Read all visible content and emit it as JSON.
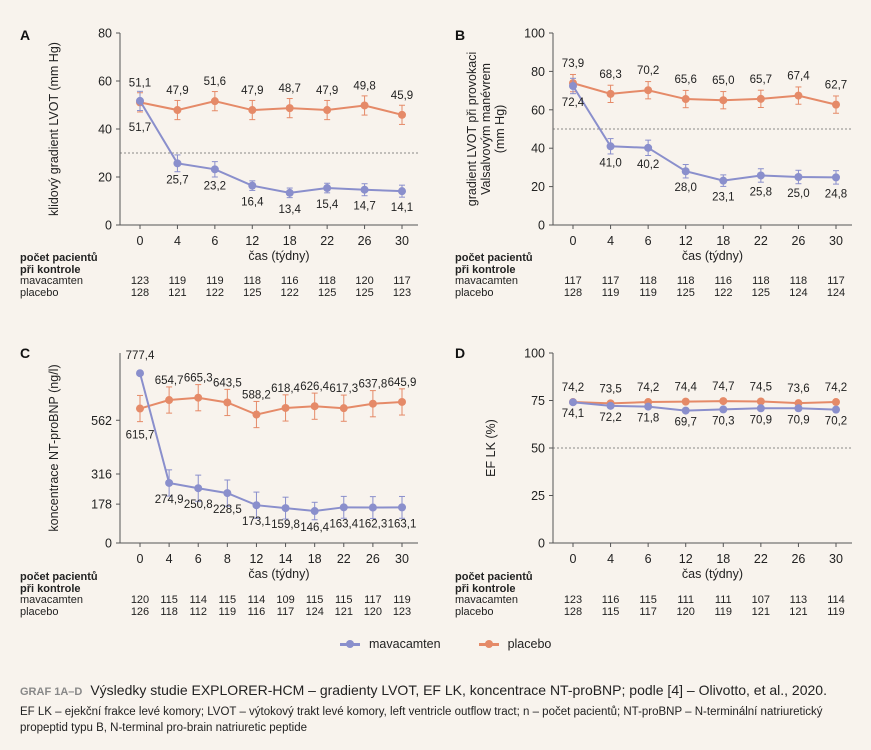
{
  "chart_data": [
    {
      "type": "line",
      "panel_label": "A",
      "ylabel": "klidový gradient LVOT (mm Hg)",
      "xlabel": "čas (týdny)",
      "categories": [
        "0",
        "4",
        "6",
        "12",
        "18",
        "22",
        "26",
        "30"
      ],
      "yticks": [
        "0",
        "20",
        "40",
        "60",
        "80"
      ],
      "ytick_values": [
        0,
        20,
        40,
        60,
        80
      ],
      "ylim": [
        0,
        80
      ],
      "threshold": 30,
      "series": [
        {
          "name": "mavacamten",
          "values": [
            51.7,
            25.7,
            23.2,
            16.4,
            13.4,
            15.4,
            14.7,
            14.1
          ],
          "labels": [
            "51,7",
            "25,7",
            "23,2",
            "16,4",
            "13,4",
            "15,4",
            "14,7",
            "14,1"
          ],
          "errors": [
            4,
            3.5,
            3.2,
            2,
            2,
            2,
            2.5,
            2.5
          ]
        },
        {
          "name": "placebo",
          "values": [
            51.1,
            47.9,
            51.6,
            47.9,
            48.7,
            47.9,
            49.8,
            45.9
          ],
          "labels": [
            "51,1",
            "47,9",
            "51,6",
            "47,9",
            "48,7",
            "47,9",
            "49,8",
            "45,9"
          ],
          "errors": [
            4,
            4,
            4,
            4,
            4,
            4,
            4,
            4
          ]
        }
      ],
      "patients": {
        "mavacamten": [
          "123",
          "119",
          "119",
          "118",
          "116",
          "118",
          "120",
          "117"
        ],
        "placebo": [
          "128",
          "121",
          "122",
          "125",
          "122",
          "125",
          "125",
          "123"
        ]
      }
    },
    {
      "type": "line",
      "panel_label": "B",
      "ylabel": "gradient LVOT při provokaci Valsalvovým manévrem (mm Hg)",
      "xlabel": "čas (týdny)",
      "categories": [
        "0",
        "4",
        "6",
        "12",
        "18",
        "22",
        "26",
        "30"
      ],
      "yticks": [
        "0",
        "20",
        "40",
        "60",
        "80",
        "100"
      ],
      "ytick_values": [
        0,
        20,
        40,
        60,
        80,
        100
      ],
      "ylim": [
        0,
        100
      ],
      "threshold": 50,
      "series": [
        {
          "name": "mavacamten",
          "values": [
            72.4,
            41.0,
            40.2,
            28.0,
            23.1,
            25.8,
            25.0,
            24.8
          ],
          "labels": [
            "72,4",
            "41,0",
            "40,2",
            "28,0",
            "23,1",
            "25,8",
            "25,0",
            "24,8"
          ],
          "errors": [
            4,
            4,
            4,
            3.5,
            3,
            3.5,
            3.5,
            3.5
          ]
        },
        {
          "name": "placebo",
          "values": [
            73.9,
            68.3,
            70.2,
            65.6,
            65.0,
            65.7,
            67.4,
            62.7
          ],
          "labels": [
            "73,9",
            "68,3",
            "70,2",
            "65,6",
            "65,0",
            "65,7",
            "67,4",
            "62,7"
          ],
          "errors": [
            4.5,
            4.5,
            4.5,
            4.5,
            4.5,
            4.5,
            4.5,
            4.5
          ]
        }
      ],
      "patients": {
        "mavacamten": [
          "117",
          "117",
          "118",
          "118",
          "116",
          "118",
          "118",
          "117"
        ],
        "placebo": [
          "128",
          "119",
          "119",
          "125",
          "122",
          "125",
          "124",
          "124"
        ]
      }
    },
    {
      "type": "line",
      "panel_label": "C",
      "ylabel": "koncentrace NT-proBNP (ng/l)",
      "xlabel": "čas (týdny)",
      "categories": [
        "0",
        "4",
        "6",
        "8",
        "12",
        "14",
        "18",
        "22",
        "26",
        "30"
      ],
      "yticks": [
        "0",
        "178",
        "316",
        "562"
      ],
      "ytick_values": [
        0,
        178,
        316,
        562
      ],
      "ylim": [
        0,
        870
      ],
      "threshold": null,
      "series": [
        {
          "name": "mavacamten",
          "values": [
            777.4,
            274.9,
            250.8,
            228.5,
            173.1,
            159.8,
            146.4,
            163.4,
            162.3,
            163.1
          ],
          "labels": [
            "777,4",
            "274,9",
            "250,8",
            "228,5",
            "173,1",
            "159,8",
            "146,4",
            "163,4",
            "162,3",
            "163,1"
          ],
          "errors": [
            0,
            60,
            60,
            60,
            60,
            50,
            40,
            50,
            50,
            50
          ]
        },
        {
          "name": "placebo",
          "values": [
            615.7,
            654.7,
            665.3,
            643.5,
            588.2,
            618.4,
            626.4,
            617.3,
            637.8,
            645.9
          ],
          "labels": [
            "615,7",
            "654,7",
            "665,3",
            "643,5",
            "588,2",
            "618,4",
            "626,4",
            "617,3",
            "637,8",
            "645,9"
          ],
          "errors": [
            60,
            60,
            60,
            60,
            60,
            60,
            60,
            60,
            60,
            60
          ]
        }
      ],
      "patients": {
        "mavacamten": [
          "120",
          "115",
          "114",
          "115",
          "114",
          "109",
          "115",
          "115",
          "117",
          "119"
        ],
        "placebo": [
          "126",
          "118",
          "112",
          "119",
          "116",
          "117",
          "124",
          "121",
          "120",
          "123"
        ]
      }
    },
    {
      "type": "line",
      "panel_label": "D",
      "ylabel": "EF LK (%)",
      "xlabel": "čas (týdny)",
      "categories": [
        "0",
        "4",
        "6",
        "12",
        "18",
        "22",
        "26",
        "30"
      ],
      "yticks": [
        "0",
        "25",
        "50",
        "75",
        "100"
      ],
      "ytick_values": [
        0,
        25,
        50,
        75,
        100
      ],
      "ylim": [
        0,
        100
      ],
      "threshold": 50,
      "series": [
        {
          "name": "mavacamten",
          "values": [
            74.1,
            72.2,
            71.8,
            69.7,
            70.3,
            70.9,
            70.9,
            70.2
          ],
          "labels": [
            "74,1",
            "72,2",
            "71,8",
            "69,7",
            "70,3",
            "70,9",
            "70,9",
            "70,2"
          ],
          "errors": [
            1,
            1,
            1,
            1,
            1,
            1,
            1,
            1
          ]
        },
        {
          "name": "placebo",
          "values": [
            74.2,
            73.5,
            74.2,
            74.4,
            74.7,
            74.5,
            73.6,
            74.2
          ],
          "labels": [
            "74,2",
            "73,5",
            "74,2",
            "74,4",
            "74,7",
            "74,5",
            "73,6",
            "74,2"
          ],
          "errors": [
            1,
            1,
            1,
            1,
            1,
            1,
            1,
            1
          ]
        }
      ],
      "patients": {
        "mavacamten": [
          "123",
          "116",
          "115",
          "111",
          "111",
          "107",
          "113",
          "114"
        ],
        "placebo": [
          "128",
          "115",
          "117",
          "120",
          "119",
          "121",
          "121",
          "119"
        ]
      }
    }
  ],
  "patients_header": [
    "počet pacientů",
    "při kontrole"
  ],
  "row_labels": {
    "mavacamten": "mavacamten",
    "placebo": "placebo"
  },
  "legend": {
    "mavacamten": "mavacamten",
    "placebo": "placebo"
  },
  "colors": {
    "mavacamten": "#8a8fcc",
    "placebo": "#e58a68",
    "text": "#222222",
    "background": "#f8f3ed"
  },
  "caption": {
    "tag": "GRAF 1A–D",
    "title": "Výsledky studie EXPLORER-HCM – gradienty LVOT, EF LK, koncentrace NT-proBNP; podle [4] – Olivotto, et al., 2020.",
    "footnote": "EF LK – ejekční frakce levé komory; LVOT – výtokový trakt levé komory, left ventricle outflow tract; n – počet pacientů; NT-proBNP – N-terminální natriuretický propeptid typu B, N-terminal pro-brain natriuretic peptide"
  }
}
